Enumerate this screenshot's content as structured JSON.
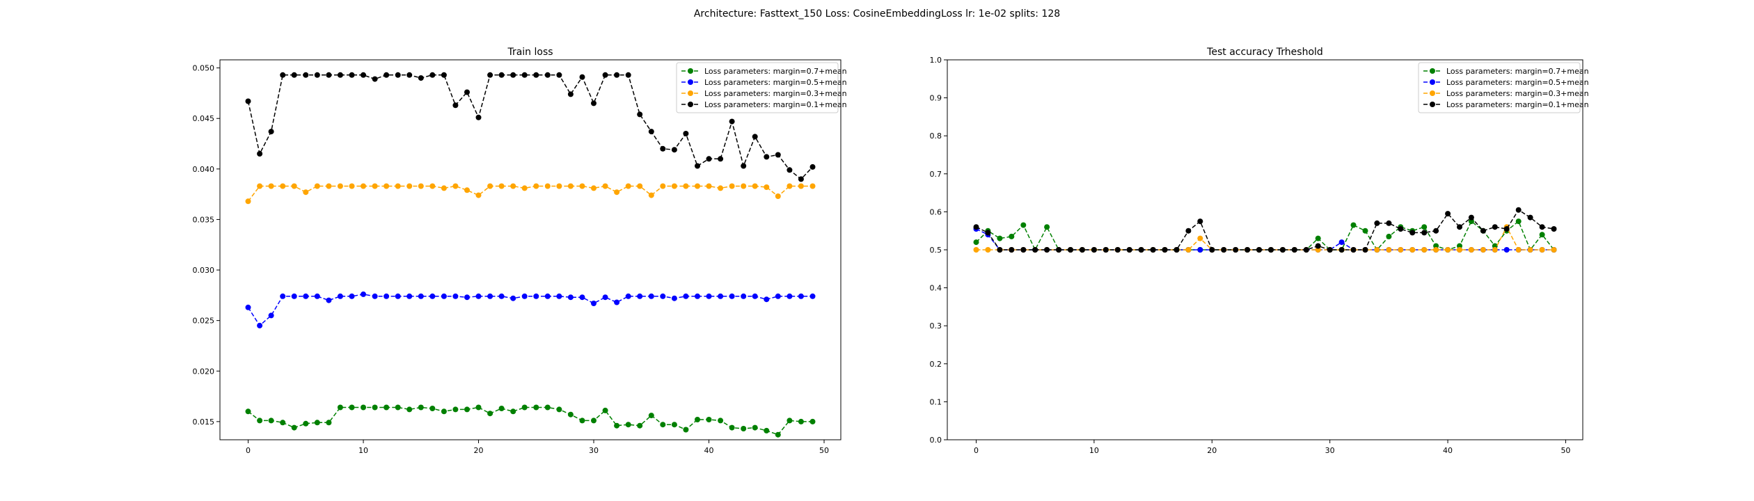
{
  "suptitle": "Architecture: Fasttext_150 Loss: CosineEmbeddingLoss lr: 1e-02 splits: 128",
  "chart_data": [
    {
      "type": "line",
      "title": "Train loss",
      "xlabel": "",
      "ylabel": "",
      "xlim": [
        -2.45,
        51.45
      ],
      "ylim": [
        0.0132,
        0.0508
      ],
      "xticks": [
        0,
        10,
        20,
        30,
        40,
        50
      ],
      "yticks": [
        0.015,
        0.02,
        0.025,
        0.03,
        0.035,
        0.04,
        0.045,
        0.05
      ],
      "ytick_labels": [
        "0.015",
        "0.020",
        "0.025",
        "0.030",
        "0.035",
        "0.040",
        "0.045",
        "0.050"
      ],
      "grid": false,
      "legend": "upper-right",
      "x": [
        0,
        1,
        2,
        3,
        4,
        5,
        6,
        7,
        8,
        9,
        10,
        11,
        12,
        13,
        14,
        15,
        16,
        17,
        18,
        19,
        20,
        21,
        22,
        23,
        24,
        25,
        26,
        27,
        28,
        29,
        30,
        31,
        32,
        33,
        34,
        35,
        36,
        37,
        38,
        39,
        40,
        41,
        42,
        43,
        44,
        45,
        46,
        47,
        48,
        49
      ],
      "series": [
        {
          "name": "Loss parameters: margin=0.7+mean",
          "color": "#008000",
          "values": [
            0.016,
            0.0151,
            0.0151,
            0.0149,
            0.0144,
            0.0148,
            0.0149,
            0.0149,
            0.0164,
            0.0164,
            0.0164,
            0.0164,
            0.0164,
            0.0164,
            0.0162,
            0.0164,
            0.0163,
            0.016,
            0.0162,
            0.0162,
            0.0164,
            0.0158,
            0.0163,
            0.016,
            0.0164,
            0.0164,
            0.0164,
            0.0162,
            0.0157,
            0.0151,
            0.0151,
            0.0161,
            0.0146,
            0.0147,
            0.0146,
            0.0156,
            0.0147,
            0.0147,
            0.0142,
            0.0152,
            0.0152,
            0.0151,
            0.0144,
            0.0143,
            0.0144,
            0.0141,
            0.0137,
            0.0151,
            0.015,
            0.015
          ]
        },
        {
          "name": "Loss parameters: margin=0.5+mean",
          "color": "#0000ff",
          "values": [
            0.0263,
            0.0245,
            0.0255,
            0.0274,
            0.0274,
            0.0274,
            0.0274,
            0.027,
            0.0274,
            0.0274,
            0.0276,
            0.0274,
            0.0274,
            0.0274,
            0.0274,
            0.0274,
            0.0274,
            0.0274,
            0.0274,
            0.0273,
            0.0274,
            0.0274,
            0.0274,
            0.0272,
            0.0274,
            0.0274,
            0.0274,
            0.0274,
            0.0273,
            0.0273,
            0.0267,
            0.0273,
            0.0268,
            0.0274,
            0.0274,
            0.0274,
            0.0274,
            0.0272,
            0.0274,
            0.0274,
            0.0274,
            0.0274,
            0.0274,
            0.0274,
            0.0274,
            0.0271,
            0.0274,
            0.0274,
            0.0274,
            0.0274
          ]
        },
        {
          "name": "Loss parameters: margin=0.3+mean",
          "color": "#ffa500",
          "values": [
            0.0368,
            0.0383,
            0.0383,
            0.0383,
            0.0383,
            0.0377,
            0.0383,
            0.0383,
            0.0383,
            0.0383,
            0.0383,
            0.0383,
            0.0383,
            0.0383,
            0.0383,
            0.0383,
            0.0383,
            0.0381,
            0.0383,
            0.0379,
            0.0374,
            0.0383,
            0.0383,
            0.0383,
            0.0381,
            0.0383,
            0.0383,
            0.0383,
            0.0383,
            0.0383,
            0.0381,
            0.0383,
            0.0377,
            0.0383,
            0.0383,
            0.0374,
            0.0383,
            0.0383,
            0.0383,
            0.0383,
            0.0383,
            0.0381,
            0.0383,
            0.0383,
            0.0383,
            0.0382,
            0.0373,
            0.0383,
            0.0383,
            0.0383
          ]
        },
        {
          "name": "Loss parameters: margin=0.1+mean",
          "color": "#000000",
          "values": [
            0.0467,
            0.0415,
            0.0437,
            0.0493,
            0.0493,
            0.0493,
            0.0493,
            0.0493,
            0.0493,
            0.0493,
            0.0493,
            0.0489,
            0.0493,
            0.0493,
            0.0493,
            0.049,
            0.0493,
            0.0493,
            0.0463,
            0.0476,
            0.0451,
            0.0493,
            0.0493,
            0.0493,
            0.0493,
            0.0493,
            0.0493,
            0.0493,
            0.0474,
            0.0491,
            0.0465,
            0.0493,
            0.0493,
            0.0493,
            0.0454,
            0.0437,
            0.042,
            0.0419,
            0.0435,
            0.0403,
            0.041,
            0.041,
            0.0447,
            0.0403,
            0.0432,
            0.0412,
            0.0414,
            0.0399,
            0.039,
            0.0402
          ]
        }
      ]
    },
    {
      "type": "line",
      "title": "Test accuracy Trheshold",
      "xlabel": "",
      "ylabel": "",
      "xlim": [
        -2.45,
        51.45
      ],
      "ylim": [
        0.0,
        1.0
      ],
      "xticks": [
        0,
        10,
        20,
        30,
        40,
        50
      ],
      "yticks": [
        0.0,
        0.1,
        0.2,
        0.3,
        0.4,
        0.5,
        0.6,
        0.7,
        0.8,
        0.9,
        1.0
      ],
      "ytick_labels": [
        "0.0",
        "0.1",
        "0.2",
        "0.3",
        "0.4",
        "0.5",
        "0.6",
        "0.7",
        "0.8",
        "0.9",
        "1.0"
      ],
      "grid": false,
      "legend": "upper-right",
      "x": [
        0,
        1,
        2,
        3,
        4,
        5,
        6,
        7,
        8,
        9,
        10,
        11,
        12,
        13,
        14,
        15,
        16,
        17,
        18,
        19,
        20,
        21,
        22,
        23,
        24,
        25,
        26,
        27,
        28,
        29,
        30,
        31,
        32,
        33,
        34,
        35,
        36,
        37,
        38,
        39,
        40,
        41,
        42,
        43,
        44,
        45,
        46,
        47,
        48,
        49
      ],
      "series": [
        {
          "name": "Loss parameters: margin=0.7+mean",
          "color": "#008000",
          "values": [
            0.52,
            0.55,
            0.53,
            0.535,
            0.565,
            0.5,
            0.56,
            0.5,
            0.5,
            0.5,
            0.5,
            0.5,
            0.5,
            0.5,
            0.5,
            0.5,
            0.5,
            0.5,
            0.5,
            0.5,
            0.5,
            0.5,
            0.5,
            0.5,
            0.5,
            0.5,
            0.5,
            0.5,
            0.5,
            0.53,
            0.5,
            0.5,
            0.565,
            0.55,
            0.5,
            0.535,
            0.56,
            0.55,
            0.56,
            0.51,
            0.5,
            0.51,
            0.575,
            0.55,
            0.51,
            0.55,
            0.575,
            0.5,
            0.54,
            0.5
          ]
        },
        {
          "name": "Loss parameters: margin=0.5+mean",
          "color": "#0000ff",
          "values": [
            0.555,
            0.54,
            0.5,
            0.5,
            0.5,
            0.5,
            0.5,
            0.5,
            0.5,
            0.5,
            0.5,
            0.5,
            0.5,
            0.5,
            0.5,
            0.5,
            0.5,
            0.5,
            0.5,
            0.5,
            0.5,
            0.5,
            0.5,
            0.5,
            0.5,
            0.5,
            0.5,
            0.5,
            0.5,
            0.5,
            0.5,
            0.52,
            0.5,
            0.5,
            0.5,
            0.5,
            0.5,
            0.5,
            0.5,
            0.5,
            0.5,
            0.5,
            0.5,
            0.5,
            0.5,
            0.5,
            0.5,
            0.5,
            0.5,
            0.5
          ]
        },
        {
          "name": "Loss parameters: margin=0.3+mean",
          "color": "#ffa500",
          "values": [
            0.5,
            0.5,
            0.5,
            0.5,
            0.5,
            0.5,
            0.5,
            0.5,
            0.5,
            0.5,
            0.5,
            0.5,
            0.5,
            0.5,
            0.5,
            0.5,
            0.5,
            0.5,
            0.5,
            0.53,
            0.5,
            0.5,
            0.5,
            0.5,
            0.5,
            0.5,
            0.5,
            0.5,
            0.5,
            0.5,
            0.5,
            0.5,
            0.5,
            0.5,
            0.5,
            0.5,
            0.5,
            0.5,
            0.5,
            0.5,
            0.5,
            0.5,
            0.5,
            0.5,
            0.5,
            0.56,
            0.5,
            0.5,
            0.5,
            0.5
          ]
        },
        {
          "name": "Loss parameters: margin=0.1+mean",
          "color": "#000000",
          "values": [
            0.56,
            0.545,
            0.5,
            0.5,
            0.5,
            0.5,
            0.5,
            0.5,
            0.5,
            0.5,
            0.5,
            0.5,
            0.5,
            0.5,
            0.5,
            0.5,
            0.5,
            0.5,
            0.55,
            0.575,
            0.5,
            0.5,
            0.5,
            0.5,
            0.5,
            0.5,
            0.5,
            0.5,
            0.5,
            0.51,
            0.5,
            0.5,
            0.5,
            0.5,
            0.57,
            0.57,
            0.555,
            0.545,
            0.545,
            0.55,
            0.595,
            0.56,
            0.585,
            0.55,
            0.56,
            0.555,
            0.605,
            0.585,
            0.56,
            0.555
          ]
        }
      ]
    }
  ]
}
